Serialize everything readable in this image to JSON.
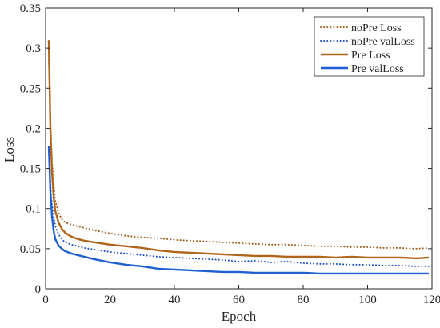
{
  "chart_data": {
    "type": "line",
    "xlabel": "Epoch",
    "ylabel": "Loss",
    "xlim": [
      0,
      120
    ],
    "ylim": [
      0,
      0.35
    ],
    "xticks": [
      0,
      20,
      40,
      60,
      80,
      100,
      120
    ],
    "yticks": [
      0,
      0.05,
      0.1,
      0.15,
      0.2,
      0.25,
      0.3,
      0.35
    ],
    "xtick_labels": [
      "0",
      "20",
      "40",
      "60",
      "80",
      "100",
      "120"
    ],
    "ytick_labels": [
      "0",
      "0.05",
      "0.1",
      "0.15",
      "0.2",
      "0.25",
      "0.3",
      "0.35"
    ],
    "grid": false,
    "legend_position": "top-right",
    "series": [
      {
        "name": "noPre Loss",
        "style": "dotted",
        "color": "#9c5b12",
        "x": [
          1,
          1.5,
          2,
          2.5,
          3,
          4,
          5,
          6,
          8,
          10,
          12,
          15,
          20,
          25,
          30,
          35,
          40,
          45,
          50,
          55,
          60,
          65,
          70,
          75,
          80,
          85,
          90,
          95,
          100,
          105,
          110,
          115,
          119
        ],
        "y": [
          0.285,
          0.21,
          0.16,
          0.13,
          0.11,
          0.095,
          0.087,
          0.083,
          0.08,
          0.078,
          0.076,
          0.073,
          0.069,
          0.066,
          0.064,
          0.063,
          0.061,
          0.06,
          0.059,
          0.058,
          0.057,
          0.056,
          0.055,
          0.055,
          0.054,
          0.053,
          0.053,
          0.052,
          0.052,
          0.051,
          0.051,
          0.05,
          0.051
        ]
      },
      {
        "name": "noPre valLoss",
        "style": "dotted",
        "color": "#1f4fbf",
        "x": [
          1,
          1.5,
          2,
          2.5,
          3,
          4,
          5,
          6,
          8,
          10,
          12,
          15,
          20,
          25,
          30,
          35,
          40,
          45,
          50,
          55,
          60,
          65,
          70,
          75,
          80,
          85,
          90,
          95,
          100,
          105,
          110,
          115,
          119
        ],
        "y": [
          0.175,
          0.13,
          0.105,
          0.09,
          0.078,
          0.068,
          0.062,
          0.058,
          0.055,
          0.053,
          0.051,
          0.049,
          0.046,
          0.044,
          0.042,
          0.04,
          0.039,
          0.038,
          0.037,
          0.036,
          0.034,
          0.035,
          0.033,
          0.034,
          0.032,
          0.031,
          0.031,
          0.03,
          0.03,
          0.029,
          0.029,
          0.028,
          0.028
        ]
      },
      {
        "name": "Pre Loss",
        "style": "solid",
        "color": "#b0651a",
        "x": [
          1,
          1.5,
          2,
          2.5,
          3,
          4,
          5,
          6,
          8,
          10,
          12,
          15,
          20,
          25,
          30,
          35,
          40,
          45,
          50,
          55,
          60,
          65,
          70,
          75,
          80,
          85,
          90,
          95,
          100,
          105,
          110,
          115,
          119
        ],
        "y": [
          0.31,
          0.2,
          0.145,
          0.115,
          0.097,
          0.083,
          0.075,
          0.07,
          0.065,
          0.062,
          0.06,
          0.058,
          0.055,
          0.053,
          0.051,
          0.048,
          0.046,
          0.045,
          0.044,
          0.043,
          0.042,
          0.041,
          0.041,
          0.04,
          0.04,
          0.04,
          0.039,
          0.04,
          0.039,
          0.039,
          0.039,
          0.038,
          0.039
        ]
      },
      {
        "name": "Pre valLoss",
        "style": "solid",
        "color": "#1f5fd1",
        "x": [
          1,
          1.5,
          2,
          2.5,
          3,
          4,
          5,
          6,
          8,
          10,
          12,
          15,
          20,
          25,
          30,
          35,
          40,
          45,
          50,
          55,
          60,
          65,
          70,
          75,
          80,
          85,
          90,
          95,
          100,
          105,
          110,
          115,
          119
        ],
        "y": [
          0.178,
          0.12,
          0.09,
          0.072,
          0.062,
          0.054,
          0.05,
          0.047,
          0.044,
          0.042,
          0.04,
          0.037,
          0.033,
          0.03,
          0.028,
          0.025,
          0.024,
          0.023,
          0.022,
          0.021,
          0.021,
          0.02,
          0.02,
          0.02,
          0.02,
          0.019,
          0.019,
          0.019,
          0.019,
          0.019,
          0.019,
          0.019,
          0.019
        ]
      }
    ]
  }
}
